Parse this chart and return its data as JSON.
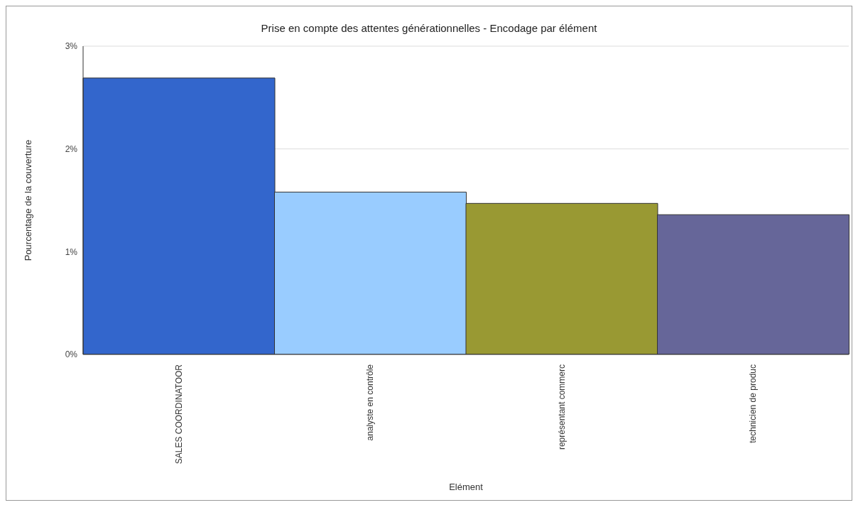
{
  "chart_data": {
    "type": "bar",
    "title": "Prise en compte des attentes générationnelles - Encodage par élément",
    "xlabel": "Elément",
    "ylabel": "Pourcentage de la couverture",
    "categories": [
      "SALES COORDINATOOR",
      "analyste en contrôle",
      "représentant commerc",
      "technicien de produc"
    ],
    "values": [
      2.69,
      1.58,
      1.47,
      1.36
    ],
    "colors": [
      "#3366cc",
      "#99ccff",
      "#999933",
      "#666699"
    ],
    "ylim": [
      0,
      3
    ],
    "yticks": [
      {
        "value": 0,
        "label": "0%"
      },
      {
        "value": 1,
        "label": "1%"
      },
      {
        "value": 2,
        "label": "2%"
      },
      {
        "value": 3,
        "label": "3%"
      }
    ],
    "grid": "y"
  }
}
